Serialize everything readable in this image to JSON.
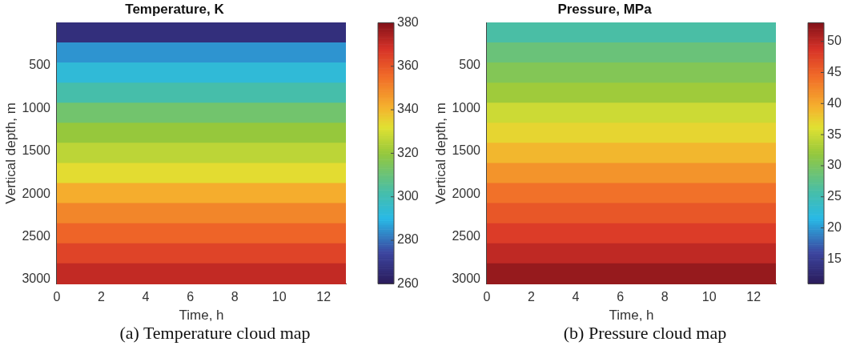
{
  "chart_data": [
    {
      "type": "heatmap",
      "title": "Temperature, K",
      "xlabel": "Time, h",
      "ylabel": "Vertical depth, m",
      "xlim": [
        0,
        13
      ],
      "xticks": [
        0,
        2,
        4,
        6,
        8,
        10,
        12
      ],
      "ylim": [
        3050,
        0
      ],
      "yticks": [
        500,
        1000,
        1500,
        2000,
        2500,
        3000
      ],
      "cells": [
        [
          267
        ],
        [
          285
        ],
        [
          293
        ],
        [
          302
        ],
        [
          312
        ],
        [
          320
        ],
        [
          326
        ],
        [
          333
        ],
        [
          342
        ],
        [
          350
        ],
        [
          357
        ],
        [
          364
        ],
        [
          371
        ]
      ],
      "clim": [
        260,
        380
      ],
      "cticks": [
        260,
        280,
        300,
        320,
        340,
        360,
        380
      ],
      "annotations": [
        "(a) Temperature cloud map"
      ]
    },
    {
      "type": "heatmap",
      "title": "Pressure, MPa",
      "xlabel": "Time, h",
      "ylabel": "Vertical depth, m",
      "xlim": [
        0,
        13
      ],
      "xticks": [
        0,
        2,
        4,
        6,
        8,
        10,
        12
      ],
      "ylim": [
        3050,
        0
      ],
      "yticks": [
        500,
        1000,
        1500,
        2000,
        2500,
        3000
      ],
      "cells": [
        [
          26
        ],
        [
          28.5
        ],
        [
          30.5
        ],
        [
          32.5
        ],
        [
          35
        ],
        [
          37
        ],
        [
          39
        ],
        [
          41.5
        ],
        [
          44
        ],
        [
          46
        ],
        [
          48
        ],
        [
          50
        ],
        [
          52
        ]
      ],
      "clim": [
        11,
        53
      ],
      "cticks": [
        15,
        20,
        25,
        30,
        35,
        40,
        45,
        50
      ],
      "annotations": [
        "(b) Pressure cloud map"
      ]
    }
  ]
}
